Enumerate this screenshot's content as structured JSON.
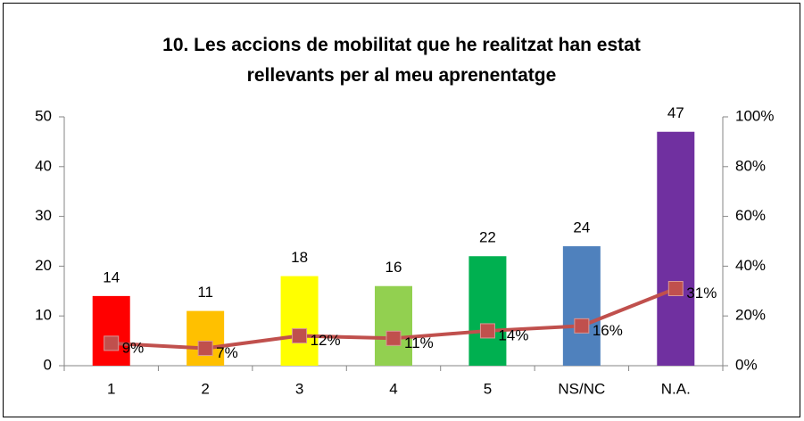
{
  "chart_data": {
    "type": "bar",
    "title": "10. Les accions de mobilitat que he realitzat han estat rellevants per al meu aprenentatge",
    "categories": [
      "1",
      "2",
      "3",
      "4",
      "5",
      "NS/NC",
      "N.A."
    ],
    "series": [
      {
        "type": "bar",
        "values": [
          14,
          11,
          18,
          16,
          22,
          24,
          47
        ],
        "colors": [
          "#ff0000",
          "#ffc000",
          "#ffff00",
          "#92d050",
          "#00b050",
          "#4f81bd",
          "#7030a0"
        ]
      },
      {
        "type": "line",
        "axis": "y2",
        "color": "#c0504d",
        "values": [
          9,
          7,
          12,
          11,
          14,
          16,
          31
        ],
        "value_labels": [
          "9%",
          "7%",
          "12%",
          "11%",
          "14%",
          "16%",
          "31%"
        ]
      }
    ],
    "ylim": [
      0,
      50
    ],
    "yticks": [
      0,
      10,
      20,
      30,
      40,
      50
    ],
    "y2lim": [
      0,
      100
    ],
    "y2ticks": [
      {
        "value": 0,
        "label": "0%"
      },
      {
        "value": 20,
        "label": "20%"
      },
      {
        "value": 40,
        "label": "40%"
      },
      {
        "value": 60,
        "label": "60%"
      },
      {
        "value": 80,
        "label": "80%"
      },
      {
        "value": 100,
        "label": "100%"
      }
    ]
  }
}
